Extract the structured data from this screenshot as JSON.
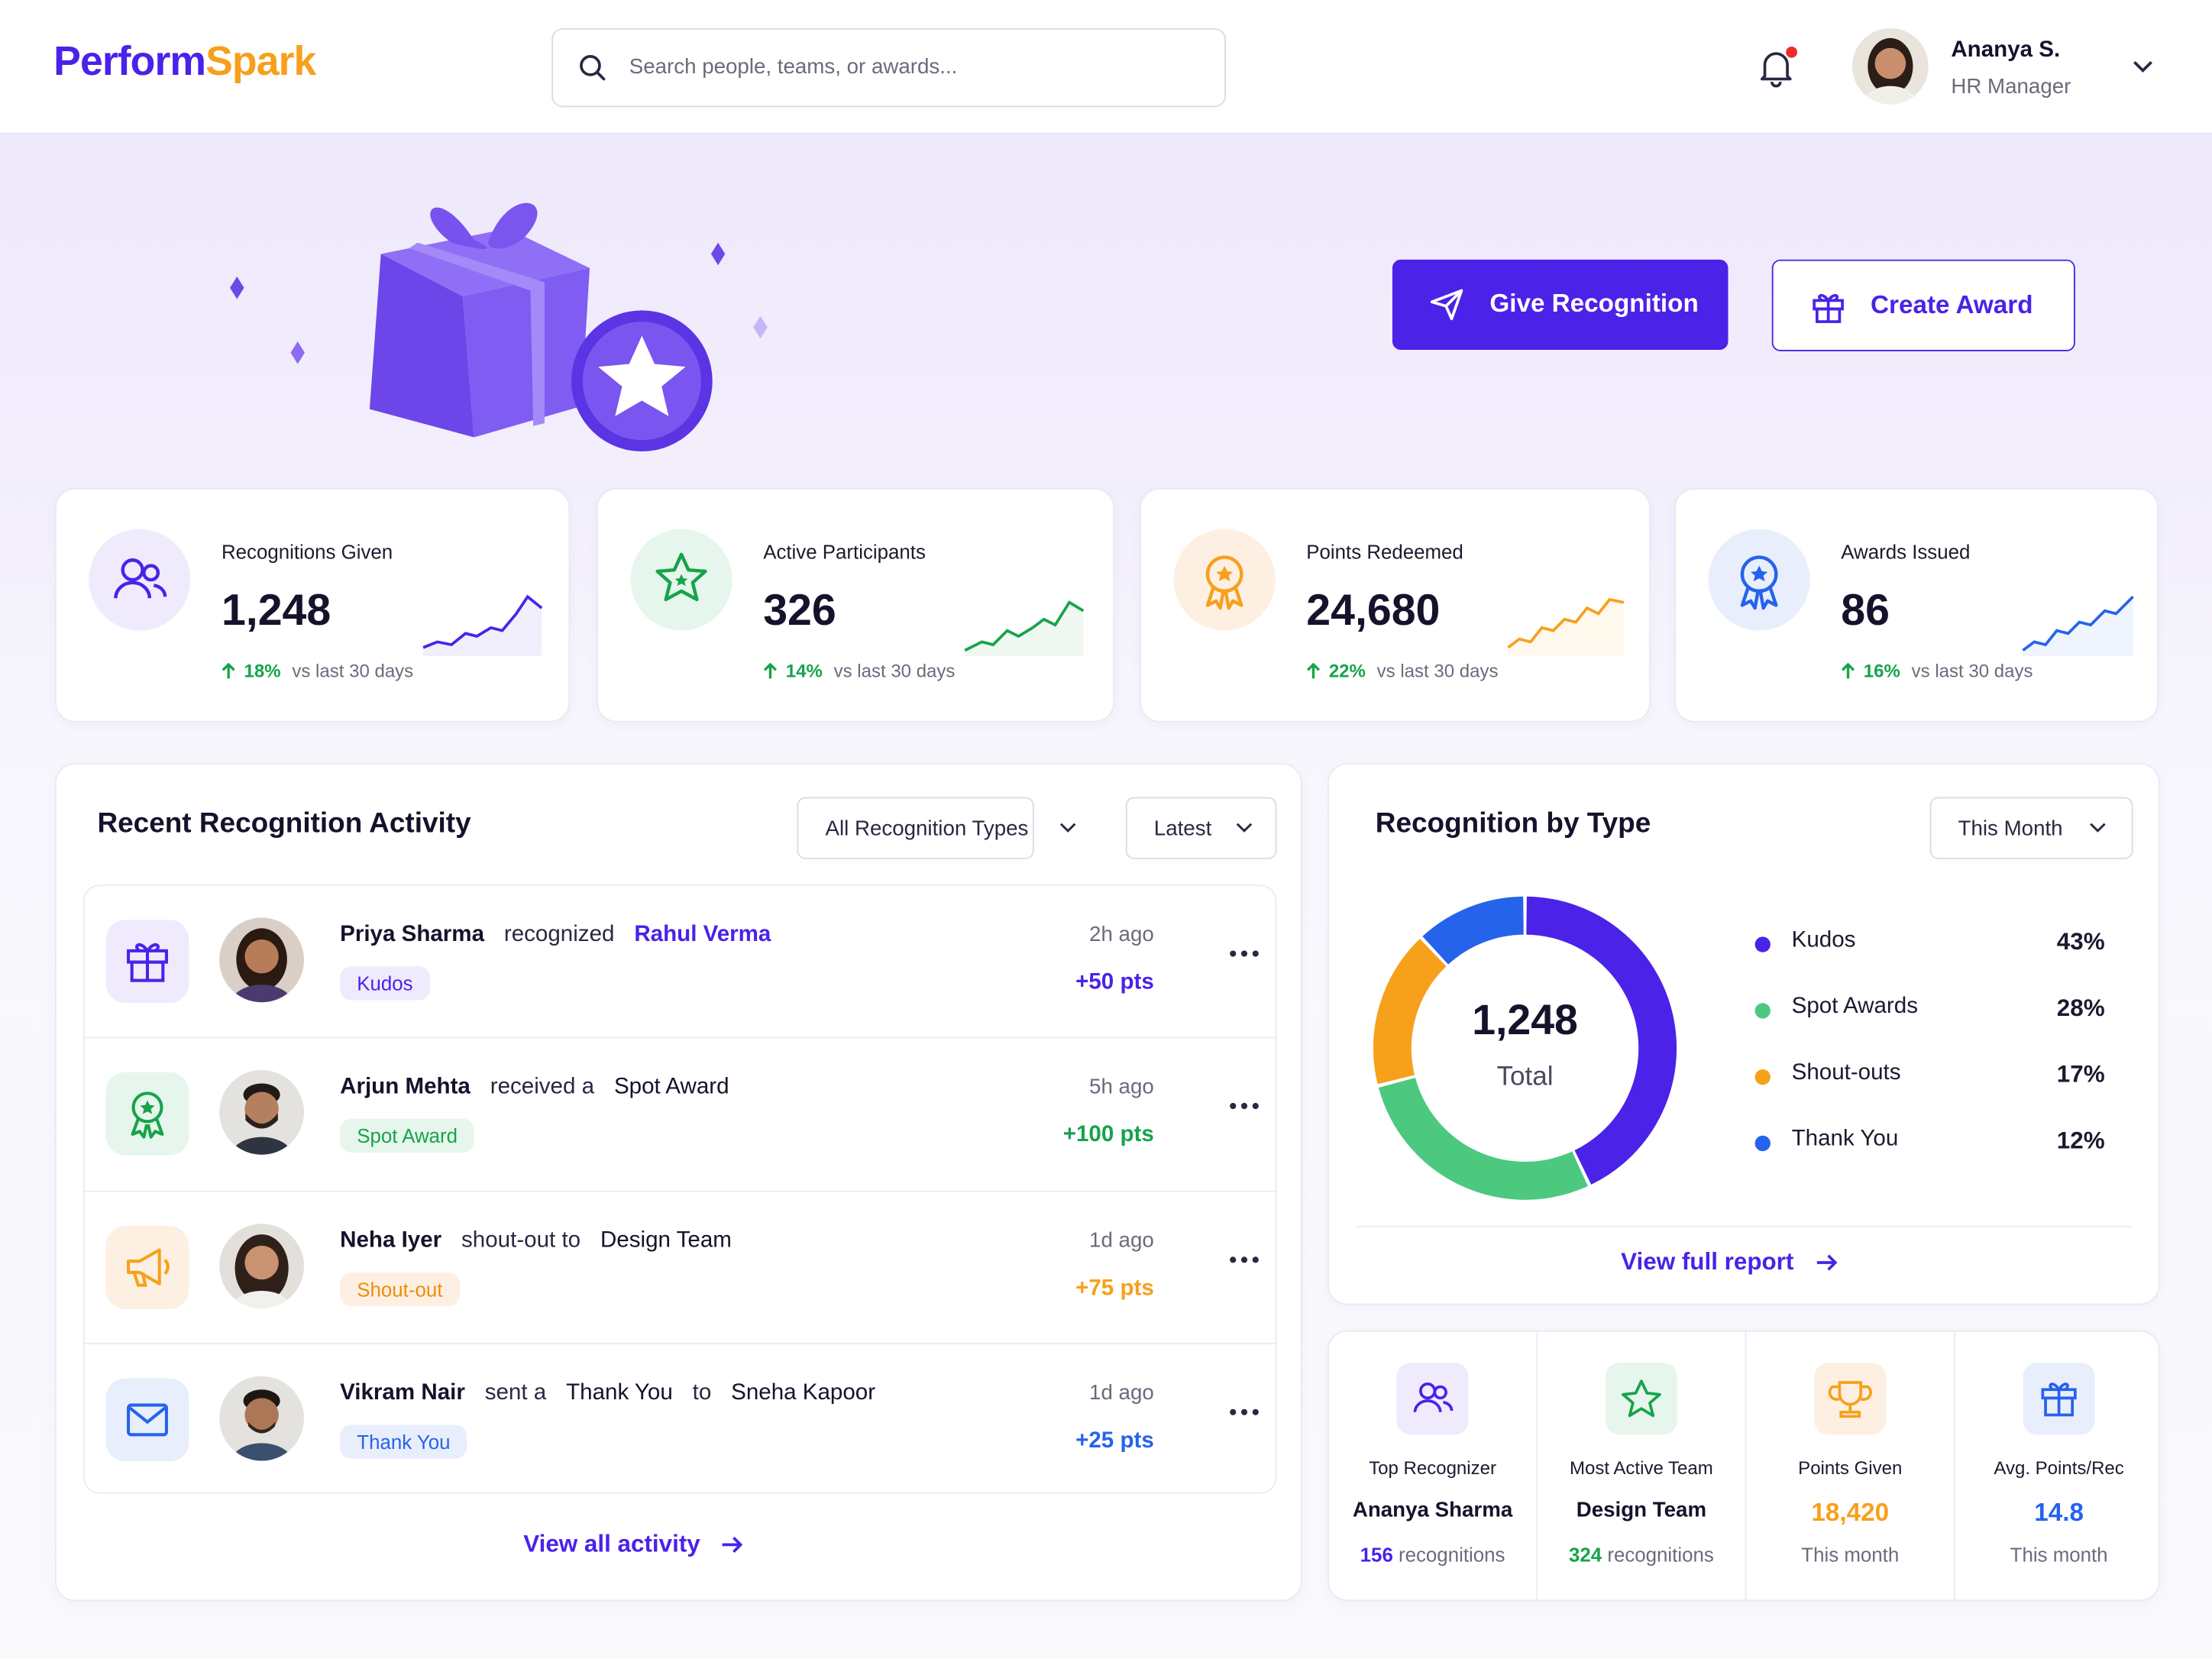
{
  "header": {
    "logo_first": "Perform",
    "logo_second": "Spark",
    "search_placeholder": "Search people, teams, or awards...",
    "user_name": "Ananya S.",
    "user_role": "HR Manager"
  },
  "hero": {
    "primary_button": "Give Recognition",
    "secondary_button": "Create Award"
  },
  "stats": [
    {
      "label": "Recognitions Given",
      "value": "1,248",
      "change": "18%",
      "note": "vs last 30 days"
    },
    {
      "label": "Active Participants",
      "value": "326",
      "change": "14%",
      "note": "vs last 30 days"
    },
    {
      "label": "Points Redeemed",
      "value": "24,680",
      "change": "22%",
      "note": "vs last 30 days"
    },
    {
      "label": "Awards Issued",
      "value": "86",
      "change": "16%",
      "note": "vs last 30 days"
    }
  ],
  "activity": {
    "title": "Recent Recognition Activity",
    "filter_type": "All Recognition Types",
    "filter_sort": "Latest",
    "items": [
      {
        "actor": "Priya Sharma",
        "phrase": [
          "recognized",
          "Rahul Verma"
        ],
        "tag": "Kudos",
        "time": "2h ago",
        "points": "+50 pts"
      },
      {
        "actor": "Arjun Mehta",
        "phrase": [
          "received a",
          "Spot Award"
        ],
        "tag": "Spot Award",
        "time": "5h ago",
        "points": "+100 pts"
      },
      {
        "actor": "Neha Iyer",
        "phrase": [
          "shout-out to",
          "Design Team"
        ],
        "tag": "Shout-out",
        "time": "1d ago",
        "points": "+75 pts"
      },
      {
        "actor": "Vikram Nair",
        "phrase": [
          "sent a",
          "Thank You",
          "to",
          "Sneha Kapoor"
        ],
        "tag": "Thank You",
        "time": "1d ago",
        "points": "+25 pts"
      }
    ],
    "view_all": "View all activity"
  },
  "breakdown": {
    "title": "Recognition by Type",
    "filter": "This Month",
    "chart_data": {
      "type": "donut",
      "categories": [
        "Kudos",
        "Spot Awards",
        "Shout-outs",
        "Thank You"
      ],
      "values": [
        43,
        28,
        17,
        12
      ],
      "value_labels": [
        "43%",
        "28%",
        "17%",
        "12%"
      ],
      "colors": [
        "#4a22e8",
        "#4cc97f",
        "#f7a01c",
        "#2563eb"
      ],
      "center_value": "1,248",
      "center_label": "Total"
    },
    "link": "View full report"
  },
  "summary": [
    {
      "label": "Top Recognizer",
      "value": "Ananya Sharma",
      "count": "156",
      "unit": "recognitions"
    },
    {
      "label": "Most Active Team",
      "value": "Design Team",
      "count": "324",
      "unit": "recognitions"
    },
    {
      "label": "Points Given",
      "value": "18,420",
      "note": "This month"
    },
    {
      "label": "Avg. Points/Rec",
      "value": "14.8",
      "note": "This month"
    }
  ]
}
